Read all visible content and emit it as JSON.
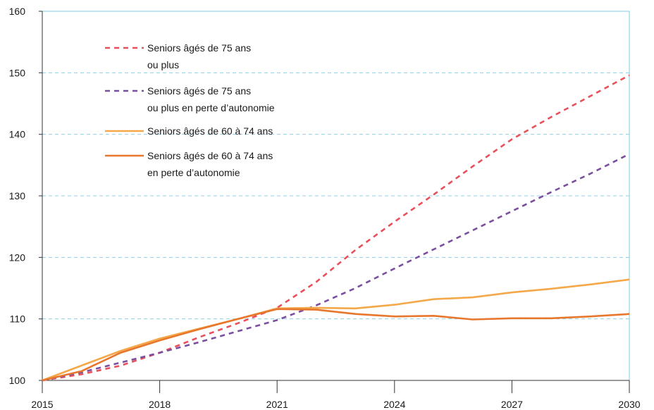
{
  "chart_data": {
    "type": "line",
    "title": "",
    "xlabel": "",
    "ylabel": "",
    "xlim": [
      2015,
      2030
    ],
    "ylim": [
      100,
      160
    ],
    "x_ticks": [
      2015,
      2018,
      2021,
      2024,
      2027,
      2030
    ],
    "y_ticks": [
      100,
      110,
      120,
      130,
      140,
      150,
      160
    ],
    "grid": "horizontal dashed",
    "legend_position": "top-left",
    "x": [
      2015,
      2016,
      2017,
      2018,
      2019,
      2020,
      2021,
      2022,
      2023,
      2024,
      2025,
      2026,
      2027,
      2028,
      2029,
      2030
    ],
    "series": [
      {
        "name_lines": [
          "Seniors âgés de 75 ans",
          "ou plus"
        ],
        "color": "#e8505b",
        "dashed": true,
        "values": [
          100,
          101.0,
          102.4,
          104.5,
          107.0,
          109.3,
          111.8,
          116.0,
          121.2,
          125.8,
          130.2,
          134.8,
          139.2,
          142.8,
          146.2,
          149.6
        ]
      },
      {
        "name_lines": [
          "Seniors âgés de 75 ans",
          "ou plus en perte d’autonomie"
        ],
        "color": "#7b4fa0",
        "dashed": true,
        "values": [
          100,
          101.3,
          102.9,
          104.5,
          106.2,
          108.0,
          109.8,
          112.2,
          115.0,
          118.2,
          121.3,
          124.4,
          127.5,
          130.6,
          133.6,
          136.8
        ]
      },
      {
        "name_lines": [
          "Seniors âgés de 60 à 74 ans"
        ],
        "color": "#f5a84a",
        "dashed": false,
        "values": [
          100,
          102.4,
          104.8,
          106.8,
          108.4,
          110.0,
          111.7,
          111.8,
          111.7,
          112.3,
          113.2,
          113.5,
          114.3,
          114.9,
          115.6,
          116.4
        ]
      },
      {
        "name_lines": [
          "Seniors âgés de 60 à 74 ans",
          "en perte d’autonomie"
        ],
        "color": "#e8772e",
        "dashed": false,
        "values": [
          100,
          101.5,
          104.5,
          106.5,
          108.3,
          110.0,
          111.6,
          111.5,
          110.8,
          110.4,
          110.5,
          109.9,
          110.1,
          110.1,
          110.4,
          110.8
        ]
      }
    ]
  }
}
